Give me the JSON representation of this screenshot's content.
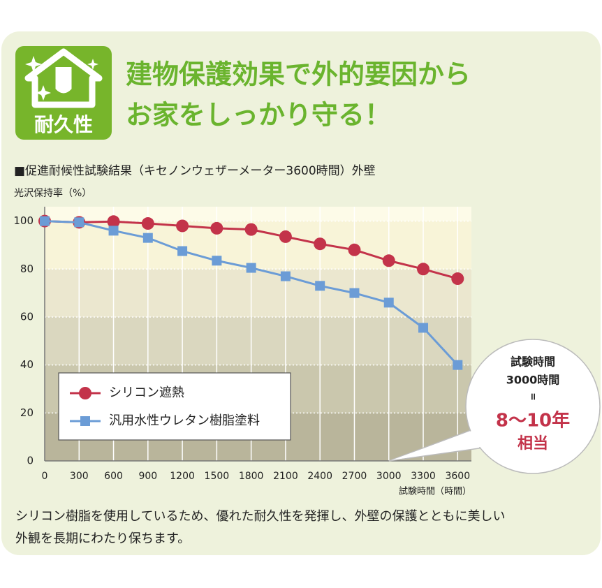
{
  "header": {
    "badge": "耐久性",
    "title_lines": [
      "建物保護効果で外的要因から",
      "お家をしっかり守る！"
    ]
  },
  "chart_data": {
    "type": "line",
    "title": "■促進耐候性試験結果（キセノンウェザーメーター3600時間）外壁",
    "y_label": "光沢保持率（%）",
    "x_label": "試験時間（時間）",
    "x": [
      0,
      300,
      600,
      900,
      1200,
      1500,
      1800,
      2100,
      2400,
      2700,
      3000,
      3300,
      3600
    ],
    "series": [
      {
        "name": "シリコン遮熱",
        "color": "#c3334a",
        "marker": "circle",
        "values": [
          100,
          99.5,
          99.8,
          99,
          98,
          97,
          96.5,
          93.5,
          90.5,
          88,
          83.5,
          80,
          76
        ]
      },
      {
        "name": "汎用水性ウレタン樹脂塗料",
        "color": "#6b9cd6",
        "marker": "square",
        "values": [
          100,
          99.5,
          96,
          93,
          87.5,
          83.5,
          80.5,
          77,
          73,
          70,
          66,
          55.5,
          40
        ]
      }
    ],
    "xlim": [
      0,
      3720
    ],
    "ylim": [
      0,
      106
    ],
    "xticks": [
      0,
      300,
      600,
      900,
      1200,
      1500,
      1800,
      2100,
      2400,
      2700,
      3000,
      3300,
      3600
    ],
    "yticks": [
      0,
      20,
      40,
      60,
      80,
      100
    ],
    "grid": true,
    "legend": "lower left",
    "annotation": [
      "試験時間",
      "3000時間",
      "=",
      "8〜10年",
      "相当"
    ]
  },
  "body": {
    "lines": [
      "シリコン樹脂を使用しているため、優れた耐久性を発揮し、外壁の保護とともに美しい",
      "外観を長期にわたり保ちます。"
    ]
  }
}
